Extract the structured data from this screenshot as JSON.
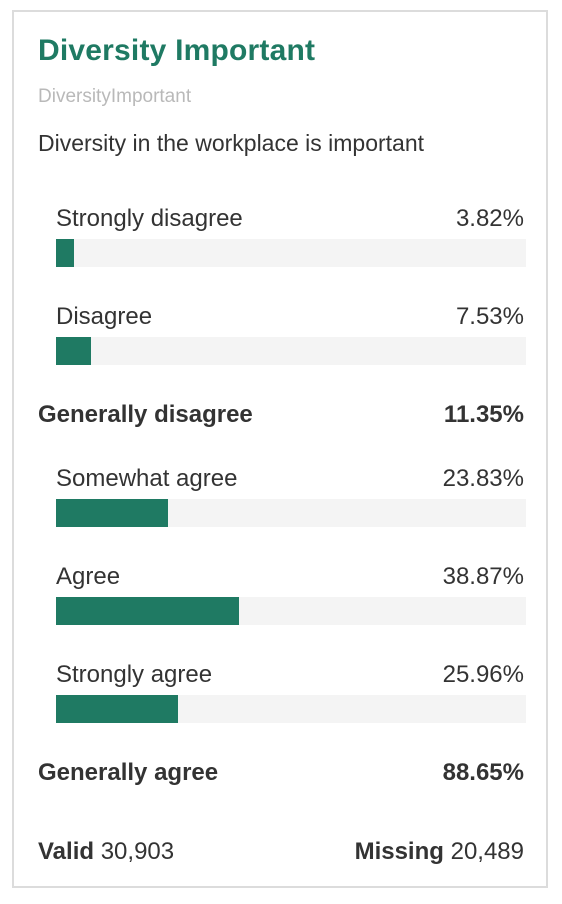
{
  "title": "Diversity Important",
  "variable_name": "DiversityImportant",
  "question": "Diversity in the workplace is important",
  "colors": {
    "accent": "#1f7a63",
    "track": "#f4f4f4",
    "text": "#333333",
    "muted": "#b9b9b9"
  },
  "chart_data": {
    "type": "bar",
    "orientation": "horizontal",
    "value_unit": "%",
    "xlim": [
      0,
      100
    ],
    "rows": [
      {
        "kind": "item",
        "label": "Strongly disagree",
        "value": 3.82,
        "display": "3.82%"
      },
      {
        "kind": "item",
        "label": "Disagree",
        "value": 7.53,
        "display": "7.53%"
      },
      {
        "kind": "group",
        "label": "Generally disagree",
        "value": 11.35,
        "display": "11.35%"
      },
      {
        "kind": "item",
        "label": "Somewhat agree",
        "value": 23.83,
        "display": "23.83%"
      },
      {
        "kind": "item",
        "label": "Agree",
        "value": 38.87,
        "display": "38.87%"
      },
      {
        "kind": "item",
        "label": "Strongly agree",
        "value": 25.96,
        "display": "25.96%"
      },
      {
        "kind": "group",
        "label": "Generally agree",
        "value": 88.65,
        "display": "88.65%"
      }
    ]
  },
  "footer": {
    "valid_label": "Valid",
    "valid_value": "30,903",
    "missing_label": "Missing",
    "missing_value": "20,489"
  }
}
